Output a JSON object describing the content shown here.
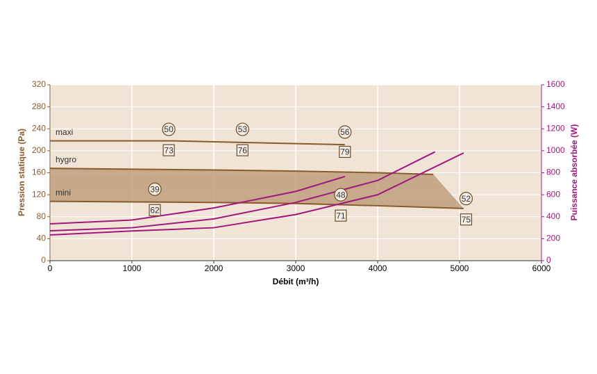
{
  "chart_data": {
    "type": "line",
    "x_label": "Débit (m³/h)",
    "y_label": "Pression statique (Pa)",
    "y2_label": "Puissance absorbée (W)",
    "xlim": [
      0,
      6000
    ],
    "xticks": [
      0,
      1000,
      2000,
      3000,
      4000,
      5000,
      6000
    ],
    "ylim": [
      0,
      320
    ],
    "yticks": [
      0,
      40,
      80,
      120,
      160,
      200,
      240,
      280,
      320
    ],
    "y2lim": [
      0,
      1600
    ],
    "y2ticks": [
      0,
      200,
      400,
      600,
      800,
      1000,
      1200,
      1400,
      1600
    ],
    "grid": true,
    "y_color": "#8a5a28",
    "y2_color": "#a3157f",
    "fill_between": [
      1,
      2
    ],
    "fill_color": "#b89472",
    "series": [
      {
        "name": "maxi",
        "color": "#8a5a28",
        "x": [
          0,
          1500,
          3600
        ],
        "values": [
          218,
          218,
          211
        ]
      },
      {
        "name": "hygro",
        "color": "#8a5a28",
        "x": [
          0,
          2000,
          3000,
          4000,
          4680
        ],
        "values": [
          168,
          165,
          163,
          160,
          157
        ]
      },
      {
        "name": "mini",
        "color": "#8a5a28",
        "x": [
          0,
          2000,
          3000,
          4000,
          5050
        ],
        "values": [
          108,
          106,
          104,
          100,
          95
        ]
      },
      {
        "color": "#a3157f",
        "axis": "y2",
        "x": [
          0,
          1000,
          2000,
          3000,
          3600
        ],
        "values": [
          335,
          370,
          480,
          630,
          766
        ]
      },
      {
        "color": "#a3157f",
        "axis": "y2",
        "x": [
          0,
          1000,
          2000,
          3000,
          4000,
          4700
        ],
        "values": [
          272,
          300,
          380,
          530,
          730,
          990
        ]
      },
      {
        "color": "#a3157f",
        "axis": "y2",
        "x": [
          0,
          1000,
          2000,
          3000,
          4000,
          5050
        ],
        "values": [
          234,
          270,
          300,
          420,
          600,
          980
        ]
      }
    ],
    "annotations": [
      {
        "shape": "circle",
        "x": 1450,
        "y": 239,
        "text": "50"
      },
      {
        "shape": "circle",
        "x": 2350,
        "y": 239,
        "text": "53"
      },
      {
        "shape": "circle",
        "x": 3600,
        "y": 234,
        "text": "56"
      },
      {
        "shape": "square",
        "x": 1450,
        "y": 201,
        "text": "73"
      },
      {
        "shape": "square",
        "x": 2350,
        "y": 201,
        "text": "76"
      },
      {
        "shape": "square",
        "x": 3600,
        "y": 198,
        "text": "79"
      },
      {
        "shape": "circle",
        "x": 1280,
        "y": 130,
        "text": "39"
      },
      {
        "shape": "circle",
        "x": 3550,
        "y": 120,
        "text": "48"
      },
      {
        "shape": "circle",
        "x": 5080,
        "y": 113,
        "text": "52"
      },
      {
        "shape": "square",
        "x": 1280,
        "y": 92,
        "text": "62"
      },
      {
        "shape": "square",
        "x": 3550,
        "y": 82,
        "text": "71"
      },
      {
        "shape": "square",
        "x": 5080,
        "y": 75,
        "text": "75"
      }
    ]
  }
}
